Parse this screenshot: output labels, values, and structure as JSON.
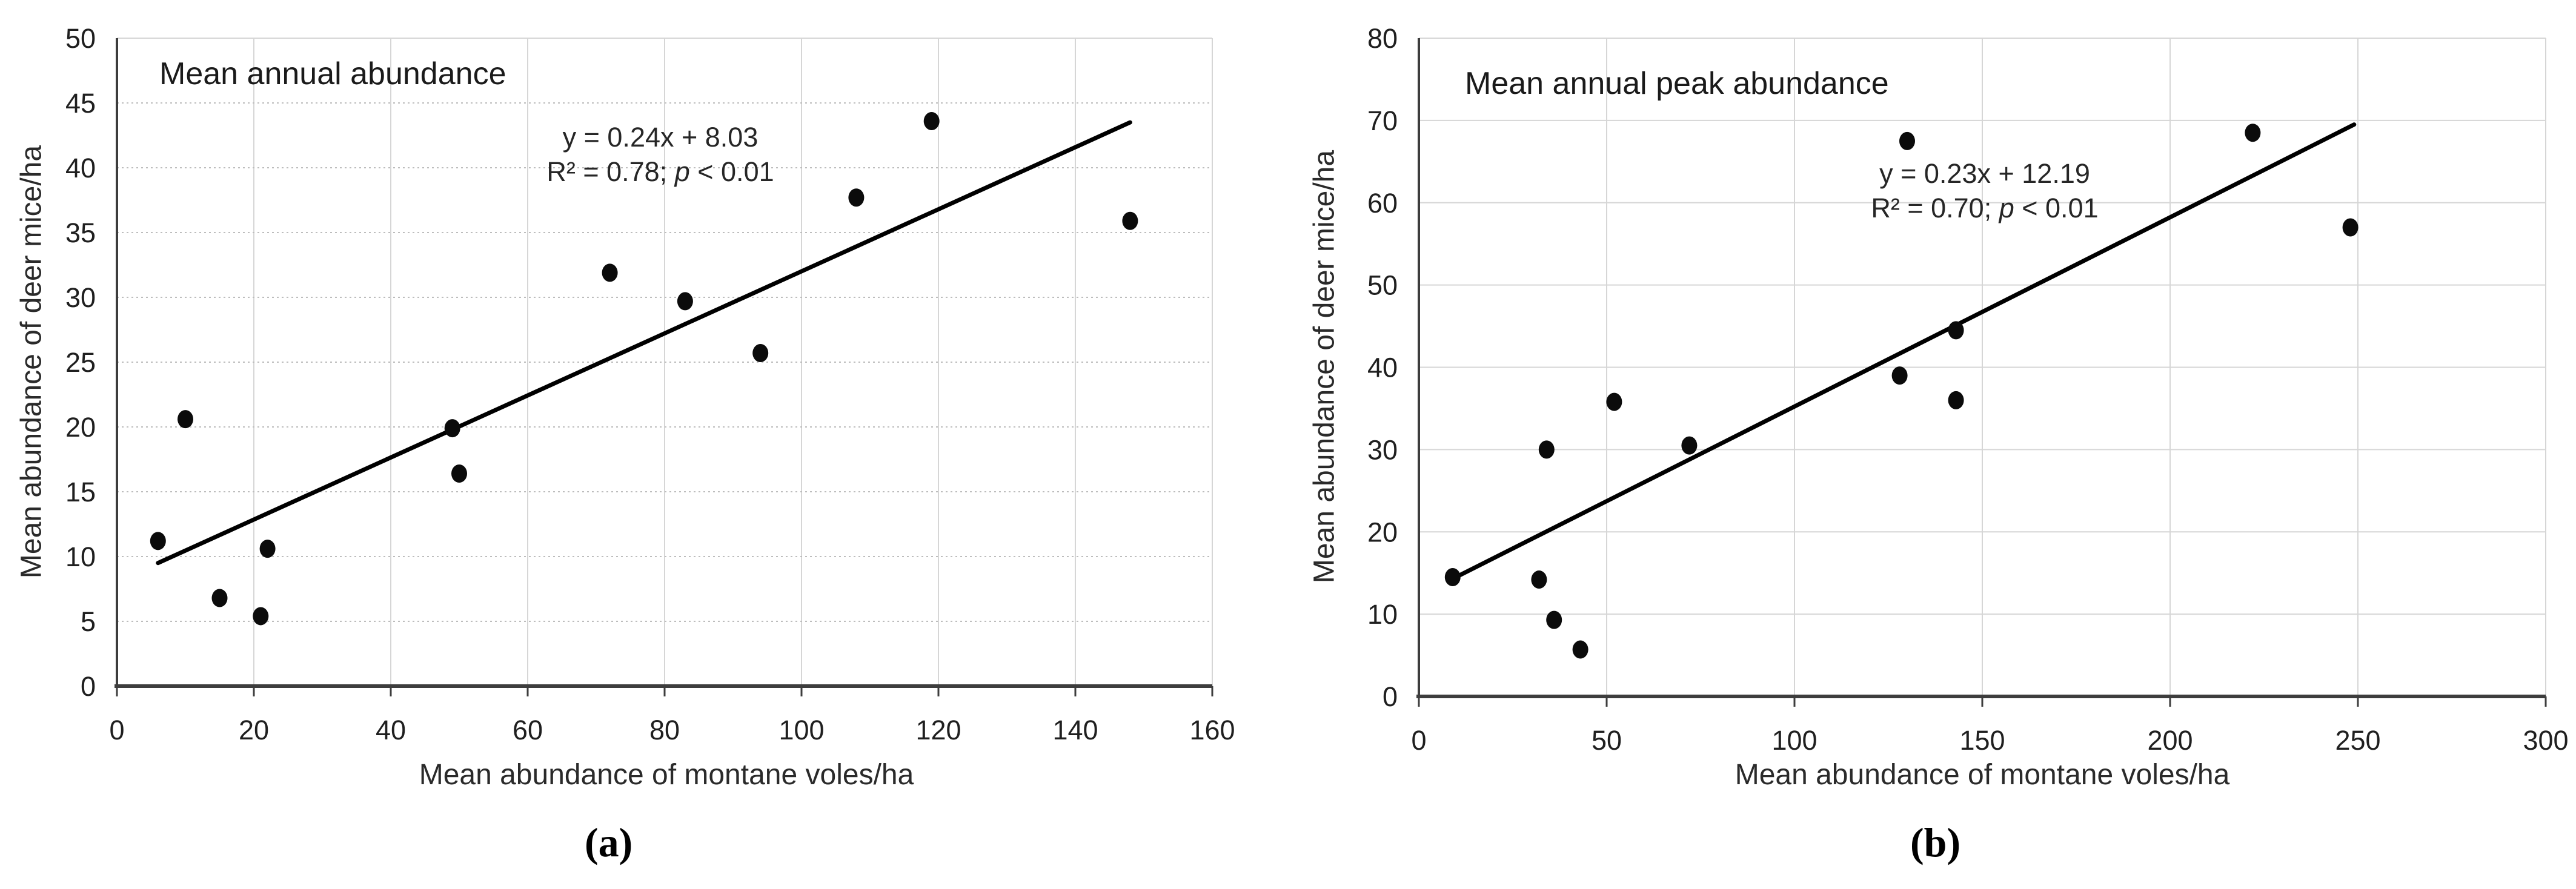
{
  "figure": {
    "background": "#ffffff",
    "text_color": "#1f1f1f",
    "axis_color": "#3d3d3d",
    "grid_color": "#d6d6d6",
    "dotted_grid_color": "#bdbdbd",
    "point_color": "#0b0b0b",
    "trend_color": "#000000"
  },
  "chart_data": [
    {
      "type": "scatter",
      "panel": "a",
      "caption": "(a)",
      "title": "Mean annual abundance",
      "equation": "y = 0.24x + 8.03",
      "stats_prefix": "R² = 0.78; ",
      "stats_p": "p",
      "stats_suffix": " < 0.01",
      "xlabel": "Mean abundance of montane voles/ha",
      "ylabel": "Mean abundance of deer mice/ha",
      "xlim": [
        0,
        160
      ],
      "ylim": [
        0,
        50
      ],
      "x_ticks": [
        0,
        20,
        40,
        60,
        80,
        100,
        120,
        140,
        160
      ],
      "y_ticks": [
        0,
        5,
        10,
        15,
        20,
        25,
        30,
        35,
        40,
        45,
        50
      ],
      "grid": true,
      "h_grid_style": "dotted",
      "legend_position": "none",
      "points": [
        [
          6,
          11.2
        ],
        [
          10,
          20.6
        ],
        [
          15,
          6.8
        ],
        [
          21,
          5.4
        ],
        [
          22,
          10.6
        ],
        [
          49,
          19.9
        ],
        [
          50,
          16.4
        ],
        [
          72,
          31.9
        ],
        [
          83,
          29.7
        ],
        [
          94,
          25.7
        ],
        [
          108,
          37.7
        ],
        [
          119,
          43.6
        ],
        [
          148,
          35.9
        ]
      ],
      "trend": {
        "x1": 6,
        "y1": 9.5,
        "x2": 148,
        "y2": 43.5
      }
    },
    {
      "type": "scatter",
      "panel": "b",
      "caption": "(b)",
      "title": "Mean annual peak abundance",
      "equation": "y = 0.23x + 12.19",
      "stats_prefix": "R² = 0.70; ",
      "stats_p": "p",
      "stats_suffix": " < 0.01",
      "xlabel": "Mean abundance of montane voles/ha",
      "ylabel": "Mean abundance of deer mice/ha",
      "xlim": [
        0,
        300
      ],
      "ylim": [
        0,
        80
      ],
      "x_ticks": [
        0,
        50,
        100,
        150,
        200,
        250,
        300
      ],
      "y_ticks": [
        0,
        10,
        20,
        30,
        40,
        50,
        60,
        70,
        80
      ],
      "grid": true,
      "h_grid_style": "solid",
      "legend_position": "none",
      "points": [
        [
          9,
          14.5
        ],
        [
          32,
          14.2
        ],
        [
          34,
          30
        ],
        [
          36,
          9.3
        ],
        [
          43,
          5.7
        ],
        [
          52,
          35.8
        ],
        [
          72,
          30.5
        ],
        [
          128,
          39
        ],
        [
          130,
          67.5
        ],
        [
          143,
          44.5
        ],
        [
          143,
          36
        ],
        [
          222,
          68.5
        ],
        [
          248,
          57
        ]
      ],
      "trend": {
        "x1": 9,
        "y1": 14.3,
        "x2": 249,
        "y2": 69.5
      }
    }
  ]
}
